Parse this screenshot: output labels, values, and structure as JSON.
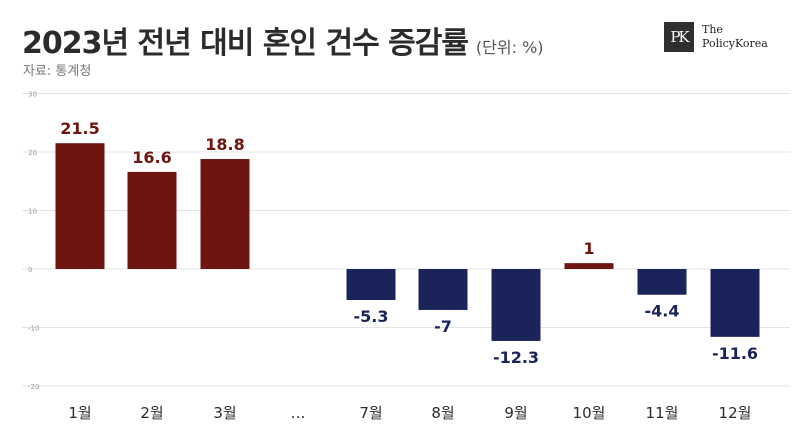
{
  "header": {
    "title": "2023년 전년 대비 혼인 건수 증감률",
    "unit": "(단위: %)",
    "source": "자료: 통계청",
    "logo_text_line1": "The",
    "logo_text_line2": "PolicyKorea"
  },
  "chart_data": {
    "type": "bar",
    "categories": [
      "1월",
      "2월",
      "3월",
      "…",
      "7월",
      "8월",
      "9월",
      "10월",
      "11월",
      "12월"
    ],
    "values": [
      21.5,
      16.6,
      18.8,
      null,
      -5.3,
      -7,
      -12.3,
      1,
      -4.4,
      -11.6
    ],
    "value_labels": [
      "21.5",
      "16.6",
      "18.8",
      "",
      "-5.3",
      "-7",
      "-12.3",
      "1",
      "-4.4",
      "-11.6"
    ],
    "yticks": [
      30,
      20,
      10,
      0,
      -10,
      -20
    ],
    "ylim": [
      -20,
      30
    ],
    "grid": true,
    "colors": {
      "positive": "#6e1510",
      "negative": "#1b245a",
      "positive_label": "#6e1510",
      "negative_label": "#1b245a"
    }
  }
}
